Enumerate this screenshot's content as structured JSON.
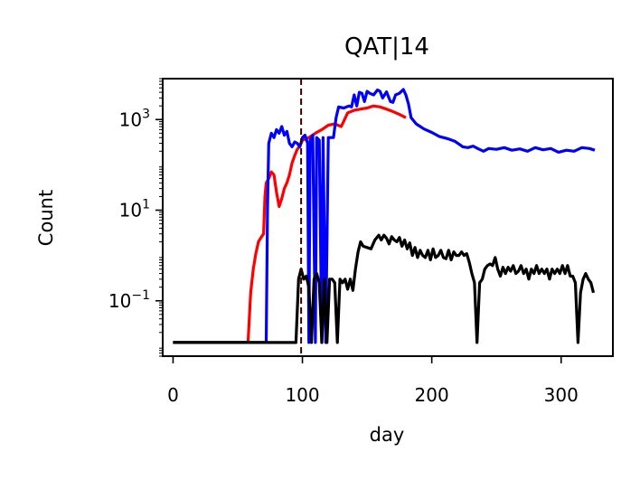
{
  "chart_data": {
    "type": "line",
    "title": "QAT|14",
    "xlabel": "day",
    "ylabel": "Count",
    "yscale": "log",
    "xlim": [
      -8,
      340
    ],
    "ylim": [
      0.006,
      8000
    ],
    "xticks": [
      0,
      100,
      200,
      300
    ],
    "yticks": [
      {
        "value": 0.1,
        "base": "10",
        "exp": "−1"
      },
      {
        "value": 10,
        "base": "10",
        "exp": "1"
      },
      {
        "value": 1000,
        "base": "10",
        "exp": "3"
      }
    ],
    "vline": {
      "x": 99,
      "color": "#3a0000",
      "style": "dashed"
    },
    "grid": false,
    "series": [
      {
        "color": "#ff0000",
        "points": [
          [
            0,
            0.012
          ],
          [
            58,
            0.012
          ],
          [
            60,
            0.15
          ],
          [
            62,
            0.5
          ],
          [
            64,
            1.1
          ],
          [
            66,
            2.0
          ],
          [
            68,
            2.5
          ],
          [
            70,
            3.0
          ],
          [
            71,
            20
          ],
          [
            72,
            40
          ],
          [
            74,
            50
          ],
          [
            76,
            70
          ],
          [
            78,
            60
          ],
          [
            80,
            25
          ],
          [
            82,
            12
          ],
          [
            84,
            18
          ],
          [
            86,
            30
          ],
          [
            88,
            40
          ],
          [
            90,
            60
          ],
          [
            92,
            110
          ],
          [
            94,
            160
          ],
          [
            96,
            220
          ],
          [
            98,
            260
          ],
          [
            100,
            350
          ],
          [
            105,
            400
          ],
          [
            110,
            500
          ],
          [
            115,
            600
          ],
          [
            120,
            750
          ],
          [
            125,
            800
          ],
          [
            130,
            700
          ],
          [
            135,
            1400
          ],
          [
            140,
            1600
          ],
          [
            145,
            1700
          ],
          [
            150,
            1800
          ],
          [
            155,
            2000
          ],
          [
            160,
            1900
          ],
          [
            165,
            1700
          ],
          [
            170,
            1500
          ],
          [
            175,
            1300
          ],
          [
            180,
            1100
          ]
        ]
      },
      {
        "color": "#0000ff",
        "points": [
          [
            0,
            0.012
          ],
          [
            72,
            0.012
          ],
          [
            73,
            10
          ],
          [
            74,
            300
          ],
          [
            76,
            500
          ],
          [
            78,
            400
          ],
          [
            80,
            600
          ],
          [
            82,
            500
          ],
          [
            84,
            700
          ],
          [
            86,
            450
          ],
          [
            88,
            550
          ],
          [
            90,
            300
          ],
          [
            92,
            250
          ],
          [
            94,
            320
          ],
          [
            96,
            300
          ],
          [
            98,
            250
          ],
          [
            100,
            400
          ],
          [
            102,
            450
          ],
          [
            104,
            300
          ],
          [
            105,
            0.012
          ],
          [
            106,
            350
          ],
          [
            108,
            450
          ],
          [
            110,
            0.012
          ],
          [
            111,
            400
          ],
          [
            113,
            350
          ],
          [
            115,
            0.012
          ],
          [
            116,
            400
          ],
          [
            118,
            0.012
          ],
          [
            120,
            400
          ],
          [
            124,
            400
          ],
          [
            126,
            1100
          ],
          [
            128,
            1900
          ],
          [
            132,
            1800
          ],
          [
            136,
            2000
          ],
          [
            138,
            1900
          ],
          [
            140,
            3500
          ],
          [
            142,
            2000
          ],
          [
            144,
            4000
          ],
          [
            146,
            3800
          ],
          [
            148,
            2500
          ],
          [
            150,
            4200
          ],
          [
            152,
            3800
          ],
          [
            155,
            3500
          ],
          [
            158,
            4500
          ],
          [
            160,
            4200
          ],
          [
            162,
            3000
          ],
          [
            165,
            4100
          ],
          [
            168,
            2500
          ],
          [
            170,
            2400
          ],
          [
            172,
            3500
          ],
          [
            175,
            3800
          ],
          [
            178,
            4600
          ],
          [
            180,
            3500
          ],
          [
            182,
            2200
          ],
          [
            184,
            1100
          ],
          [
            188,
            800
          ],
          [
            194,
            620
          ],
          [
            200,
            520
          ],
          [
            206,
            420
          ],
          [
            212,
            380
          ],
          [
            218,
            330
          ],
          [
            224,
            250
          ],
          [
            228,
            240
          ],
          [
            232,
            260
          ],
          [
            236,
            225
          ],
          [
            240,
            200
          ],
          [
            244,
            230
          ],
          [
            250,
            220
          ],
          [
            256,
            240
          ],
          [
            262,
            210
          ],
          [
            268,
            225
          ],
          [
            274,
            200
          ],
          [
            280,
            240
          ],
          [
            286,
            215
          ],
          [
            292,
            230
          ],
          [
            298,
            190
          ],
          [
            304,
            210
          ],
          [
            310,
            200
          ],
          [
            316,
            240
          ],
          [
            322,
            230
          ],
          [
            326,
            210
          ]
        ]
      },
      {
        "color": "#000000",
        "points": [
          [
            0,
            0.012
          ],
          [
            84,
            0.012
          ],
          [
            90,
            0.012
          ],
          [
            95,
            0.012
          ],
          [
            97,
            0.3
          ],
          [
            99,
            0.5
          ],
          [
            101,
            0.3
          ],
          [
            103,
            0.35
          ],
          [
            105,
            0.2
          ],
          [
            107,
            0.012
          ],
          [
            109,
            0.3
          ],
          [
            111,
            0.4
          ],
          [
            113,
            0.25
          ],
          [
            115,
            0.012
          ],
          [
            117,
            0.3
          ],
          [
            119,
            0.012
          ],
          [
            121,
            0.3
          ],
          [
            123,
            0.3
          ],
          [
            125,
            0.25
          ],
          [
            127,
            0.012
          ],
          [
            129,
            0.3
          ],
          [
            131,
            0.25
          ],
          [
            133,
            0.3
          ],
          [
            135,
            0.18
          ],
          [
            137,
            0.3
          ],
          [
            139,
            0.17
          ],
          [
            141,
            0.5
          ],
          [
            143,
            1.2
          ],
          [
            145,
            2.0
          ],
          [
            147,
            1.6
          ],
          [
            150,
            1.5
          ],
          [
            153,
            1.4
          ],
          [
            156,
            2.2
          ],
          [
            159,
            2.8
          ],
          [
            161,
            2.2
          ],
          [
            163,
            2.8
          ],
          [
            165,
            2.4
          ],
          [
            167,
            1.8
          ],
          [
            169,
            2.6
          ],
          [
            171,
            2.2
          ],
          [
            173,
            2.0
          ],
          [
            175,
            2.5
          ],
          [
            177,
            1.6
          ],
          [
            179,
            2.2
          ],
          [
            181,
            1.4
          ],
          [
            183,
            1.9
          ],
          [
            185,
            1.0
          ],
          [
            187,
            1.5
          ],
          [
            189,
            0.9
          ],
          [
            191,
            1.3
          ],
          [
            193,
            1.0
          ],
          [
            195,
            0.9
          ],
          [
            197,
            1.3
          ],
          [
            199,
            0.8
          ],
          [
            201,
            1.4
          ],
          [
            203,
            0.9
          ],
          [
            205,
            1.0
          ],
          [
            207,
            1.3
          ],
          [
            209,
            0.9
          ],
          [
            211,
            0.85
          ],
          [
            213,
            1.3
          ],
          [
            215,
            0.8
          ],
          [
            217,
            1.2
          ],
          [
            219,
            1.0
          ],
          [
            221,
            1.0
          ],
          [
            223,
            1.2
          ],
          [
            225,
            1.0
          ],
          [
            227,
            1.1
          ],
          [
            229,
            0.7
          ],
          [
            231,
            0.4
          ],
          [
            233,
            0.25
          ],
          [
            235,
            0.012
          ],
          [
            237,
            0.25
          ],
          [
            239,
            0.3
          ],
          [
            241,
            0.5
          ],
          [
            243,
            0.6
          ],
          [
            245,
            0.65
          ],
          [
            247,
            0.6
          ],
          [
            249,
            0.9
          ],
          [
            251,
            0.5
          ],
          [
            253,
            0.35
          ],
          [
            255,
            0.55
          ],
          [
            257,
            0.4
          ],
          [
            259,
            0.55
          ],
          [
            261,
            0.45
          ],
          [
            263,
            0.6
          ],
          [
            265,
            0.4
          ],
          [
            267,
            0.45
          ],
          [
            269,
            0.6
          ],
          [
            271,
            0.4
          ],
          [
            273,
            0.5
          ],
          [
            275,
            0.3
          ],
          [
            277,
            0.5
          ],
          [
            279,
            0.4
          ],
          [
            281,
            0.6
          ],
          [
            283,
            0.4
          ],
          [
            285,
            0.5
          ],
          [
            287,
            0.4
          ],
          [
            289,
            0.5
          ],
          [
            291,
            0.3
          ],
          [
            293,
            0.5
          ],
          [
            295,
            0.4
          ],
          [
            297,
            0.5
          ],
          [
            299,
            0.4
          ],
          [
            301,
            0.6
          ],
          [
            303,
            0.4
          ],
          [
            305,
            0.6
          ],
          [
            307,
            0.35
          ],
          [
            309,
            0.35
          ],
          [
            311,
            0.25
          ],
          [
            313,
            0.012
          ],
          [
            315,
            0.15
          ],
          [
            317,
            0.3
          ],
          [
            319,
            0.4
          ],
          [
            321,
            0.3
          ],
          [
            323,
            0.25
          ],
          [
            325,
            0.15
          ]
        ]
      }
    ]
  }
}
